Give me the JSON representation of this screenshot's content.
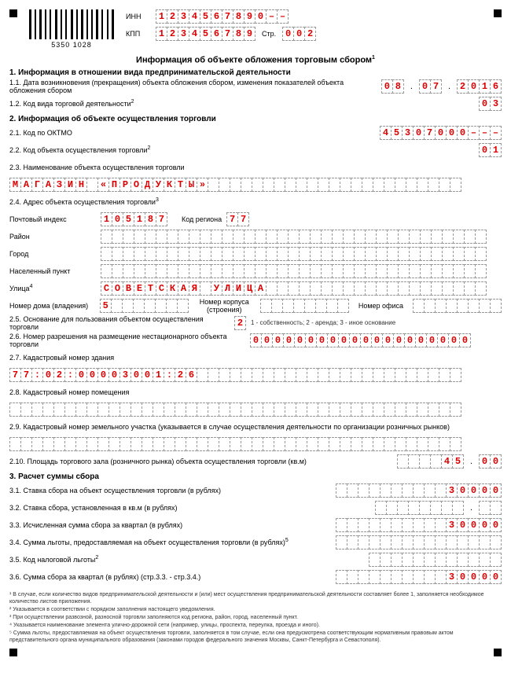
{
  "header": {
    "barcode_number": "5350 1028",
    "inn_label": "ИНН",
    "inn": [
      "1",
      "2",
      "3",
      "4",
      "5",
      "6",
      "7",
      "8",
      "9",
      "0",
      "–",
      "–"
    ],
    "kpp_label": "КПП",
    "kpp": [
      "1",
      "2",
      "3",
      "4",
      "5",
      "6",
      "7",
      "8",
      "9"
    ],
    "page_label": "Стр.",
    "page": [
      "0",
      "0",
      "2"
    ]
  },
  "title": "Информация об объекте обложения торговым сбором",
  "s1": {
    "h": "1. Информация в отношении вида предпринимательской деятельности",
    "l11": "1.1. Дата возникновения (прекращения) объекта обложения сбором, изменения показателей объекта обложения сбором",
    "d11_d": [
      "0",
      "8"
    ],
    "d11_m": [
      "0",
      "7"
    ],
    "d11_y": [
      "2",
      "0",
      "1",
      "6"
    ],
    "l12": "1.2. Код вида торговой деятельности",
    "v12": [
      "0",
      "3"
    ]
  },
  "s2": {
    "h": "2. Информация об объекте осуществления торговли",
    "l21": "2.1. Код по ОКТМО",
    "v21": [
      "4",
      "5",
      "3",
      "0",
      "7",
      "0",
      "0",
      "0",
      "–",
      "–",
      "–"
    ],
    "l22": "2.2. Код объекта осуществления торговли",
    "v22": [
      "0",
      "1"
    ],
    "l23": "2.3. Наименование объекта осуществления торговли",
    "v23": [
      "М",
      "А",
      "Г",
      "А",
      "З",
      "И",
      "Н",
      "",
      "«",
      "П",
      "Р",
      "О",
      "Д",
      "У",
      "К",
      "Т",
      "Ы",
      "»",
      "",
      "",
      "",
      "",
      "",
      "",
      "",
      "",
      "",
      "",
      "",
      "",
      "",
      "",
      "",
      "",
      "",
      "",
      "",
      "",
      "",
      "",
      ""
    ],
    "l24": "2.4. Адрес объекта осуществления торговли",
    "postal_l": "Почтовый индекс",
    "postal": [
      "1",
      "0",
      "5",
      "1",
      "8",
      "7"
    ],
    "region_l": "Код региона",
    "region": [
      "7",
      "7"
    ],
    "rayon_l": "Район",
    "rayon_n": 35,
    "city_l": "Город",
    "city_n": 35,
    "town_l": "Населенный пункт",
    "town_n": 35,
    "street_l": "Улица",
    "street": [
      "С",
      "О",
      "В",
      "Е",
      "Т",
      "С",
      "К",
      "А",
      "Я",
      "",
      "У",
      "Л",
      "И",
      "Ц",
      "А",
      "",
      "",
      "",
      "",
      "",
      "",
      "",
      "",
      "",
      "",
      "",
      "",
      "",
      "",
      "",
      "",
      "",
      "",
      "",
      ""
    ],
    "house_l": "Номер дома (владения)",
    "house": [
      "5",
      "",
      "",
      "",
      "",
      "",
      "",
      ""
    ],
    "korpus_l": "Номер корпуса (строения)",
    "korpus_n": 8,
    "office_l": "Номер офиса",
    "office_n": 8,
    "l25": "2.5. Основание для пользования объектом осуществления торговли",
    "v25": [
      "2"
    ],
    "hint25": "1 - собственность; 2 - аренда; 3 - иное основание",
    "l26": "2.6. Номер разрешения на размещение нестационарного объекта торговли",
    "v26": [
      "0",
      "0",
      "0",
      "0",
      "0",
      "0",
      "0",
      "0",
      "0",
      "0",
      "0",
      "0",
      "0",
      "0",
      "0",
      "0",
      "0",
      "0",
      "0",
      "0"
    ],
    "l27": "2.7. Кадастровый номер здания",
    "v27": [
      "7",
      "7",
      ":",
      "0",
      "2",
      ":",
      "0",
      "0",
      "0",
      "0",
      "3",
      "0",
      "0",
      "1",
      ":",
      "2",
      "6",
      "",
      "",
      "",
      "",
      "",
      "",
      "",
      "",
      "",
      "",
      "",
      "",
      "",
      "",
      "",
      "",
      "",
      "",
      "",
      "",
      "",
      "",
      "",
      ""
    ],
    "l28": "2.8. Кадастровый номер помещения",
    "v28_n": 41,
    "l29": "2.9. Кадастровый номер земельного участка (указывается в случае осуществления деятельности по организации розничных рынков)",
    "v29_n": 41,
    "l210": "2.10. Площадь торгового зала (розничного рынка) объекта осуществления торговли (кв.м)",
    "v210a": [
      "",
      "",
      "",
      "",
      "4",
      "5"
    ],
    "v210b": [
      "0",
      "0"
    ]
  },
  "s3": {
    "h": "3. Расчет суммы сбора",
    "l31": "3.1. Ставка сбора на объект осуществления торговли (в рублях)",
    "v31": [
      "",
      "",
      "",
      "",
      "",
      "",
      "",
      "",
      "",
      "",
      "3",
      "0",
      "0",
      "0",
      "0"
    ],
    "l32": "3.2. Ставка сбора, установленная в кв.м (в рублях)",
    "v32a": [
      "",
      "",
      "",
      "",
      "",
      "",
      "",
      ""
    ],
    "v32b": [
      "",
      ""
    ],
    "l33": "3.3. Исчисленная сумма сбора за квартал (в рублях)",
    "v33": [
      "",
      "",
      "",
      "",
      "",
      "",
      "",
      "",
      "",
      "",
      "3",
      "0",
      "0",
      "0",
      "0"
    ],
    "l34": "3.4. Сумма льготы, предоставляемая на объект осуществления торговли (в рублях)",
    "v34": [
      "",
      "",
      "",
      "",
      "",
      "",
      "",
      "",
      "",
      "",
      "",
      "",
      "",
      "",
      ""
    ],
    "l35": "3.5. Код налоговой льготы",
    "v35": [
      "",
      "",
      "",
      "",
      "",
      "",
      "",
      "",
      "",
      "",
      "",
      ""
    ],
    "l36": "3.6. Сумма сбора за квартал (в рублях) (стр.3.3. - стр.3.4.)",
    "v36": [
      "",
      "",
      "",
      "",
      "",
      "",
      "",
      "",
      "",
      "",
      "3",
      "0",
      "0",
      "0",
      "0"
    ]
  },
  "footnotes": [
    "¹ В случае, если количество видов предпринимательской деятельности и (или) мест осуществления предпринимательской деятельности составляет более 1, заполняется необходимое количество листов приложения.",
    "² Указывается в соответствии с порядком заполнения настоящего уведомления.",
    "³ При осуществлении развозной, разносной торговли заполняются код региона, район, город, населенный пункт.",
    "⁴ Указывается наименование элемента улично-дорожной сети (например, улицы, проспекта, переулка, проезда и иного).",
    "⁵ Сумма льготы, предоставляемая на объект осуществления торговли, заполняется в том случае, если она предусмотрена соответствующим нормативным правовым актом представительного органа муниципального образования (законами городов федерального значения Москвы, Санкт-Петербурга и Севастополя)."
  ]
}
